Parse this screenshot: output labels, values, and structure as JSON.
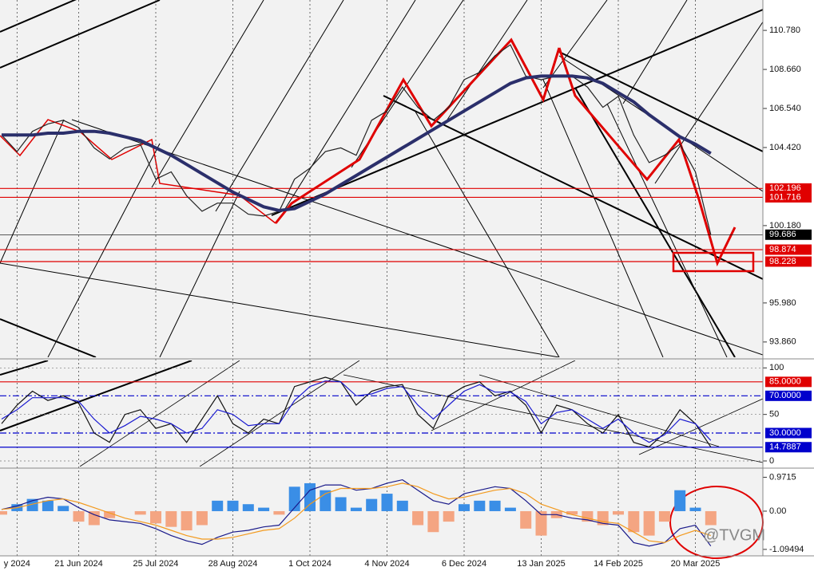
{
  "chart_data": [
    {
      "type": "line",
      "categories": [
        null,
        "y 2024",
        null,
        null,
        null,
        "21 Jun 2024",
        null,
        null,
        null,
        null,
        "25 Jul 2024",
        null,
        null,
        null,
        null,
        "28 Aug 2024",
        null,
        null,
        null,
        null,
        "1 Oct 2024",
        null,
        null,
        null,
        null,
        "4 Nov 2024",
        null,
        null,
        null,
        null,
        "6 Dec 2024",
        null,
        null,
        null,
        null,
        "13 Jan 2025",
        null,
        null,
        null,
        null,
        "14 Feb 2025",
        null,
        null,
        null,
        null,
        "20 Mar 2025",
        null
      ],
      "ylim": [
        93.03,
        112.43
      ],
      "yticks": [
        {
          "value": 110.78,
          "label": "110.780"
        },
        {
          "value": 108.66,
          "label": "108.660"
        },
        {
          "value": 106.54,
          "label": "106.540"
        },
        {
          "value": 104.42,
          "label": "104.420"
        },
        {
          "value": 100.18,
          "label": "100.180"
        },
        {
          "value": 95.98,
          "label": "95.980"
        },
        {
          "value": 93.86,
          "label": "93.860"
        }
      ],
      "levels": [
        {
          "value": 102.196,
          "color": "#e00000"
        },
        {
          "value": 101.716,
          "color": "#e00000"
        },
        {
          "value": 99.686,
          "color": "#000000"
        },
        {
          "value": 98.874,
          "color": "#e00000"
        },
        {
          "value": 98.228,
          "color": "#e00000"
        }
      ],
      "series": [
        {
          "type": "line",
          "color": "#222222",
          "values": [
            105.1,
            104.2,
            105.3,
            105.7,
            105.9,
            105.5,
            104.4,
            103.8,
            104.4,
            104.6,
            102.7,
            103.1,
            101.8,
            100.96,
            101.4,
            101.4,
            100.8,
            100.7,
            100.96,
            102.7,
            103.3,
            104.2,
            104.4,
            104.0,
            105.9,
            106.4,
            107.7,
            106.6,
            105.9,
            106.6,
            108.1,
            108.5,
            109.4,
            110.0,
            108.3,
            108.1,
            108.3,
            108.3,
            107.7,
            106.6,
            107.2,
            105.1,
            103.6,
            104.0,
            104.6,
            103.1,
            99.686
          ]
        },
        {
          "type": "line",
          "color": "#2b2f6b",
          "width": 4,
          "values": [
            105.1,
            105.1,
            105.1,
            105.2,
            105.2,
            105.3,
            105.3,
            105.2,
            105.0,
            104.8,
            104.4,
            104.0,
            103.5,
            103.0,
            102.5,
            102.0,
            101.6,
            101.2,
            101.0,
            101.1,
            101.5,
            101.9,
            102.4,
            102.9,
            103.4,
            103.9,
            104.4,
            104.9,
            105.4,
            105.9,
            106.4,
            106.9,
            107.4,
            107.9,
            108.2,
            108.3,
            108.3,
            108.3,
            108.2,
            107.9,
            107.4,
            106.9,
            106.2,
            105.6,
            105.0,
            104.6,
            104.1
          ]
        }
      ],
      "annotation": "@TVGM"
    },
    {
      "type": "line",
      "ylim": [
        -6,
        108
      ],
      "yticks": [
        100,
        50,
        0
      ],
      "levels": [
        {
          "value": 85,
          "label": "85.0000",
          "color": "#e00000"
        },
        {
          "value": 70,
          "label": "70.0000",
          "color": "#0000cc"
        },
        {
          "value": 30,
          "label": "30.0000",
          "color": "#0000cc"
        },
        {
          "value": 14.7887,
          "color": "#0000cc"
        }
      ],
      "series": [
        {
          "type": "line",
          "color": "#111111",
          "values": [
            40,
            60,
            75,
            65,
            70,
            62,
            30,
            20,
            50,
            55,
            35,
            40,
            20,
            45,
            70,
            40,
            30,
            45,
            40,
            80,
            85,
            90,
            85,
            60,
            75,
            80,
            82,
            50,
            35,
            70,
            80,
            85,
            70,
            75,
            60,
            30,
            60,
            55,
            40,
            30,
            50,
            20,
            15,
            30,
            55,
            40,
            15
          ]
        },
        {
          "type": "line",
          "color": "#1a1ad0",
          "values": [
            45,
            55,
            68,
            68,
            68,
            64,
            45,
            30,
            38,
            48,
            45,
            40,
            30,
            35,
            55,
            50,
            38,
            40,
            40,
            65,
            80,
            86,
            85,
            70,
            72,
            78,
            80,
            60,
            45,
            60,
            75,
            82,
            74,
            74,
            64,
            40,
            52,
            55,
            45,
            35,
            45,
            30,
            20,
            28,
            45,
            40,
            22
          ]
        }
      ]
    },
    {
      "type": "bar",
      "ylim": [
        -1.28,
        1.21
      ],
      "yticks": [
        0.9715,
        {
          "value": 0,
          "label": "0.00"
        },
        -1.09494
      ],
      "series": [
        {
          "type": "bar",
          "color": "#3a8ee6",
          "negative_color": "#f4a582",
          "values": [
            -0.1,
            0.2,
            0.35,
            0.3,
            0.15,
            -0.3,
            -0.4,
            -0.2,
            0,
            -0.1,
            -0.35,
            -0.45,
            -0.55,
            -0.4,
            0.3,
            0.3,
            0.2,
            0.1,
            -0.1,
            0.7,
            0.8,
            0.6,
            0.4,
            0.1,
            0.35,
            0.5,
            0.3,
            -0.4,
            -0.6,
            -0.3,
            0.2,
            0.3,
            0.3,
            0.1,
            -0.5,
            -0.7,
            -0.2,
            -0.1,
            -0.3,
            -0.4,
            -0.1,
            -0.6,
            -0.7,
            -0.3,
            0.6,
            0.1,
            -0.4
          ]
        },
        {
          "type": "line",
          "color": "#1a1a8a",
          "values": [
            0.05,
            0.15,
            0.3,
            0.4,
            0.35,
            0.1,
            -0.1,
            -0.25,
            -0.3,
            -0.35,
            -0.5,
            -0.7,
            -0.85,
            -0.95,
            -0.75,
            -0.6,
            -0.55,
            -0.45,
            -0.4,
            0.1,
            0.6,
            0.75,
            0.75,
            0.6,
            0.65,
            0.8,
            0.9,
            0.6,
            0.3,
            0.2,
            0.5,
            0.6,
            0.7,
            0.65,
            0.3,
            -0.1,
            -0.1,
            -0.2,
            -0.25,
            -0.35,
            -0.4,
            -0.9,
            -1.0,
            -0.9,
            -0.5,
            -0.4,
            -1.0
          ]
        },
        {
          "type": "line",
          "color": "#f39a1e",
          "values": [
            0.05,
            0.1,
            0.2,
            0.3,
            0.35,
            0.25,
            0.1,
            -0.05,
            -0.2,
            -0.3,
            -0.4,
            -0.55,
            -0.7,
            -0.8,
            -0.8,
            -0.75,
            -0.65,
            -0.55,
            -0.5,
            -0.2,
            0.2,
            0.5,
            0.65,
            0.65,
            0.65,
            0.7,
            0.8,
            0.7,
            0.5,
            0.35,
            0.4,
            0.5,
            0.6,
            0.65,
            0.5,
            0.2,
            0.05,
            -0.1,
            -0.2,
            -0.3,
            -0.35,
            -0.6,
            -0.85,
            -0.9,
            -0.7,
            -0.55,
            -0.7
          ]
        }
      ]
    }
  ]
}
